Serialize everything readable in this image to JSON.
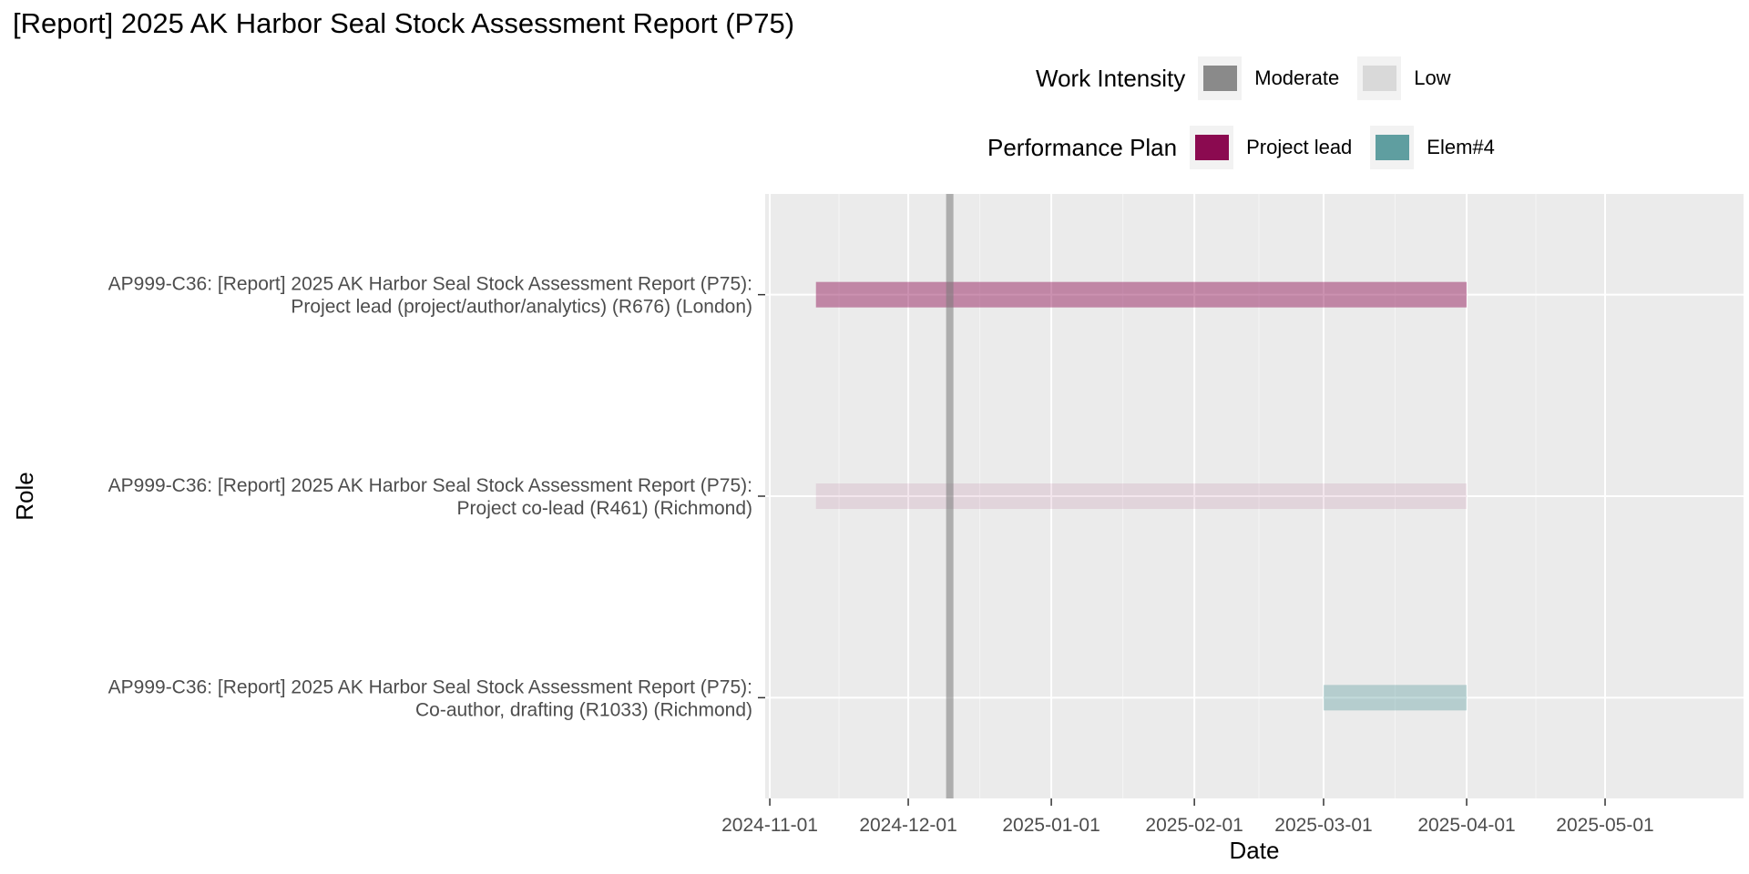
{
  "title": "[Report] 2025 AK Harbor Seal Stock Assessment Report (P75)",
  "legends": {
    "intensity": {
      "title": "Work Intensity",
      "items": [
        {
          "label": "Moderate",
          "color": "#8a8a8a"
        },
        {
          "label": "Low",
          "color": "#d9d9d9"
        }
      ]
    },
    "plan": {
      "title": "Performance Plan",
      "items": [
        {
          "label": "Project lead",
          "color": "#8b0a50"
        },
        {
          "label": "Elem#4",
          "color": "#5f9ea0"
        }
      ]
    }
  },
  "chart_data": {
    "type": "gantt",
    "xlabel": "Date",
    "ylabel": "Role",
    "xlim": [
      "2024-11-01",
      "2025-05-31"
    ],
    "x_ticks": [
      "2024-11-01",
      "2024-12-01",
      "2025-01-01",
      "2025-02-01",
      "2025-03-01",
      "2025-04-01",
      "2025-05-01"
    ],
    "reference_line": "2024-12-10",
    "grid": true,
    "legend_position": "top",
    "rows": [
      {
        "label_lines": [
          "AP999-C36: [Report] 2025 AK Harbor Seal Stock Assessment Report (P75):",
          "Co-author, drafting (R1033) (Richmond)"
        ],
        "start": "2025-03-01",
        "end": "2025-04-01",
        "performance_plan": "Elem#4",
        "work_intensity": "Low"
      },
      {
        "label_lines": [
          "AP999-C36: [Report] 2025 AK Harbor Seal Stock Assessment Report (P75):",
          "Project co-lead (R461) (Richmond)"
        ],
        "start": "2024-11-11",
        "end": "2025-04-01",
        "performance_plan": "Project lead",
        "work_intensity": "Low"
      },
      {
        "label_lines": [
          "AP999-C36: [Report] 2025 AK Harbor Seal Stock Assessment Report (P75):",
          "Project lead (project/author/analytics) (R676) (London)"
        ],
        "start": "2024-11-11",
        "end": "2025-04-01",
        "performance_plan": "Project lead",
        "work_intensity": "Moderate"
      }
    ]
  }
}
